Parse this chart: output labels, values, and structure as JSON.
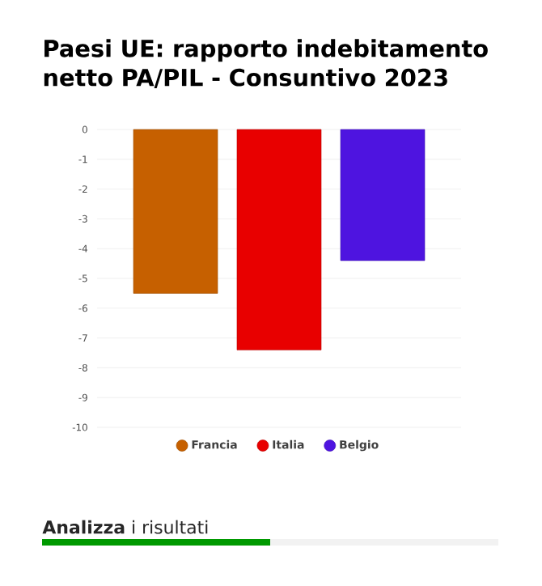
{
  "chart_data": {
    "type": "bar",
    "title": "Paesi UE: rapporto indebitamento netto PA/PIL - Consuntivo 2023",
    "categories": [
      null
    ],
    "series": [
      {
        "name": "Francia",
        "color": "#c66000",
        "values": [
          -5.5
        ]
      },
      {
        "name": "Italia",
        "color": "#e80000",
        "values": [
          -7.4
        ]
      },
      {
        "name": "Belgio",
        "color": "#4e14e0",
        "values": [
          -4.4
        ]
      }
    ],
    "ylim": [
      -10,
      0
    ],
    "yticks": [
      0,
      -1,
      -2,
      -3,
      -4,
      -5,
      -6,
      -7,
      -8,
      -9,
      -10
    ],
    "grid": "y",
    "legend": "bottom",
    "annotations": [
      "**Analizza** i risultati"
    ]
  }
}
